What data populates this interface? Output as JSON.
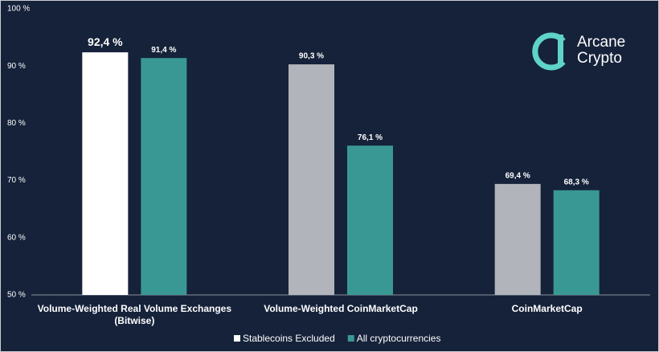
{
  "chart_data": {
    "type": "bar",
    "categories": [
      "Volume-Weighted Real Volume Exchanges (Bitwise)",
      "Volume-Weighted CoinMarketCap",
      "CoinMarketCap"
    ],
    "series": [
      {
        "name": "Stablecoins Excluded",
        "color": "#ffffff",
        "point_colors": [
          "#ffffff",
          "#b1b4bb",
          "#b1b4bb"
        ],
        "values": [
          92.4,
          90.3,
          69.4
        ],
        "value_labels": [
          "92,4 %",
          "90,3 %",
          "69,4 %"
        ]
      },
      {
        "name": "All cryptocurrencies",
        "color": "#3a9894",
        "values": [
          91.4,
          76.1,
          68.3
        ],
        "value_labels": [
          "91,4 %",
          "76,1 %",
          "68,3 %"
        ]
      }
    ],
    "ylim": [
      50,
      100
    ],
    "yticks": [
      {
        "value": 50,
        "label": "50 %"
      },
      {
        "value": 60,
        "label": "60 %"
      },
      {
        "value": 70,
        "label": "70 %"
      },
      {
        "value": 80,
        "label": "80 %"
      },
      {
        "value": 90,
        "label": "90 %"
      },
      {
        "value": 100,
        "label": "100 %"
      }
    ],
    "legend": "bottom"
  },
  "logo": {
    "line1": "Arcane",
    "line2": "Crypto"
  }
}
